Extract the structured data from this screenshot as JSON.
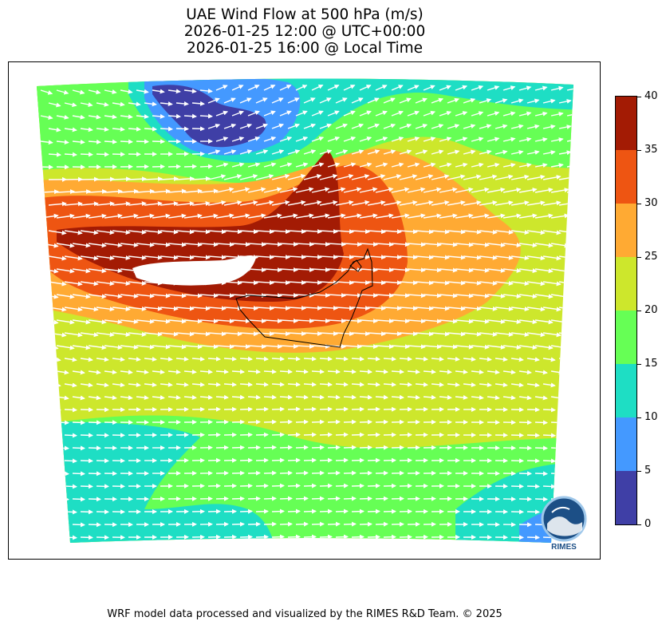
{
  "header": {
    "title_line1": "UAE Wind Flow at 500 hPa (m/s)",
    "title_line2": "2026-01-25 12:00 @ UTC+00:00",
    "title_line3": "2026-01-25 16:00 @ Local Time"
  },
  "colorbar": {
    "ticks": [
      "0",
      "5",
      "10",
      "15",
      "20",
      "25",
      "30",
      "35",
      "40"
    ],
    "levels": [
      {
        "range": [
          0,
          5
        ],
        "color": "#3f3fa6"
      },
      {
        "range": [
          5,
          10
        ],
        "color": "#4499ff"
      },
      {
        "range": [
          10,
          15
        ],
        "color": "#1edec4"
      },
      {
        "range": [
          15,
          20
        ],
        "color": "#66ff55"
      },
      {
        "range": [
          20,
          25
        ],
        "color": "#cde72c"
      },
      {
        "range": [
          25,
          30
        ],
        "color": "#ffaa33"
      },
      {
        "range": [
          30,
          35
        ],
        "color": "#ee5512"
      },
      {
        "range": [
          35,
          40
        ],
        "color": "#a31b04"
      }
    ]
  },
  "logo": {
    "text": "RIMES",
    "icon": "rimes-logo-icon"
  },
  "footer": {
    "credit": "WRF model data processed and visualized by the RIMES R&D Team. © 2025"
  }
}
